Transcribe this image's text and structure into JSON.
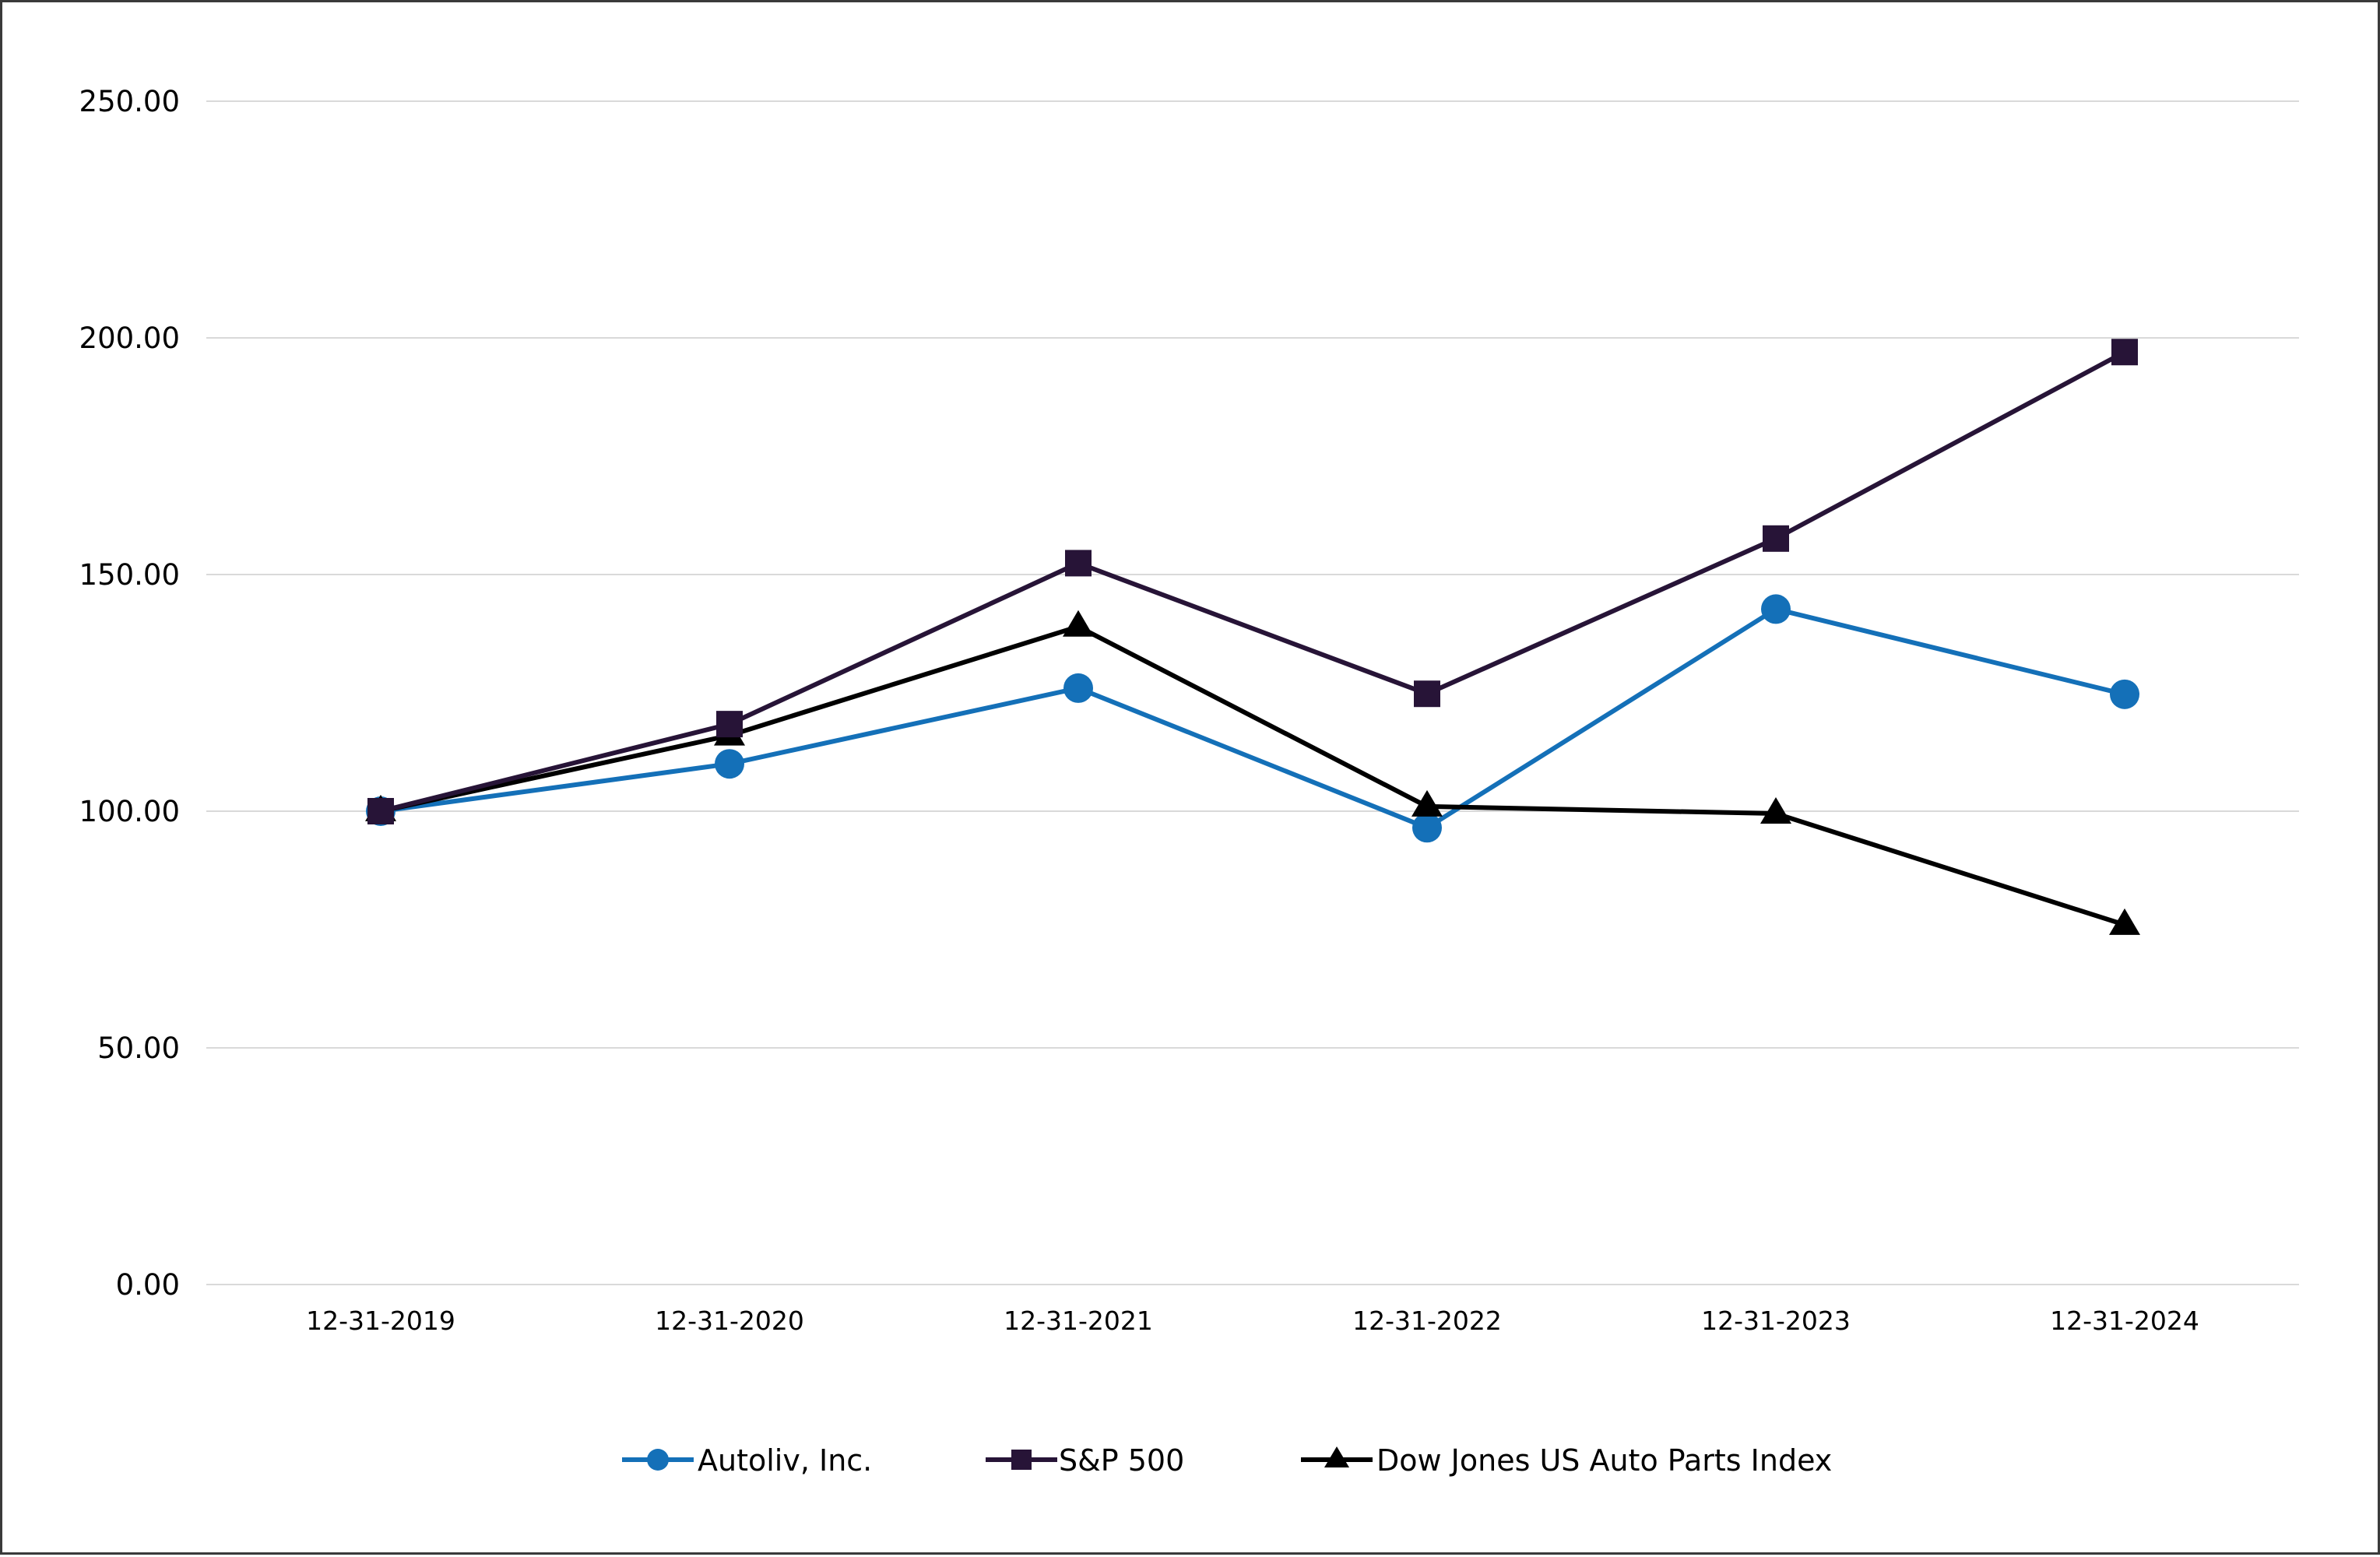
{
  "chart_data": {
    "type": "line",
    "title": "",
    "xlabel": "",
    "ylabel": "",
    "categories": [
      "12-31-2019",
      "12-31-2020",
      "12-31-2021",
      "12-31-2022",
      "12-31-2023",
      "12-31-2024"
    ],
    "ylim": [
      0,
      250
    ],
    "yticks": [
      "0.00",
      "50.00",
      "100.00",
      "150.00",
      "200.00",
      "250.00"
    ],
    "grid": "horizontal",
    "legend": "bottom",
    "series": [
      {
        "name": "Autoliv, Inc.",
        "color": "#1470b8",
        "marker": "circle",
        "values": [
          100.0,
          110.0,
          126.0,
          96.5,
          142.7,
          124.7
        ]
      },
      {
        "name": "S&P 500",
        "color": "#271437",
        "marker": "square",
        "values": [
          100.0,
          118.4,
          152.4,
          124.8,
          157.6,
          197.0
        ]
      },
      {
        "name": "Dow Jones US Auto Parts Index",
        "color": "#000000",
        "marker": "triangle",
        "values": [
          100.0,
          116.0,
          139.0,
          101.0,
          99.5,
          76.0
        ]
      }
    ]
  }
}
